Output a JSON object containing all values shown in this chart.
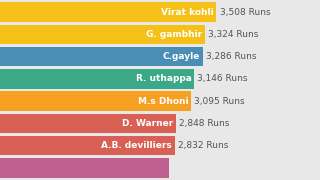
{
  "players": [
    "Virat kohli",
    "G. gambhir",
    "C.gayle",
    "R. uthappa",
    "M.s Dhoni",
    "D. Warner",
    "A.B. devilliers"
  ],
  "runs": [
    3508,
    3324,
    3286,
    3146,
    3095,
    2848,
    2832
  ],
  "colors": [
    "#F5C118",
    "#F5C118",
    "#4A8DB5",
    "#3BA888",
    "#F5A020",
    "#D96055",
    "#D96055"
  ],
  "name_colors": [
    "#ffffff",
    "#ffffff",
    "#ffffff",
    "#ffffff",
    "#ffffff",
    "#ffffff",
    "#ffffff"
  ],
  "background_color": "#e8e8e8",
  "value_label_color": "#555555",
  "font_size_name": 6.5,
  "font_size_value": 6.5,
  "extra_bar_color": "#C06090",
  "extra_bar_value": 2750,
  "bar_height": 0.88,
  "max_val": 3508
}
